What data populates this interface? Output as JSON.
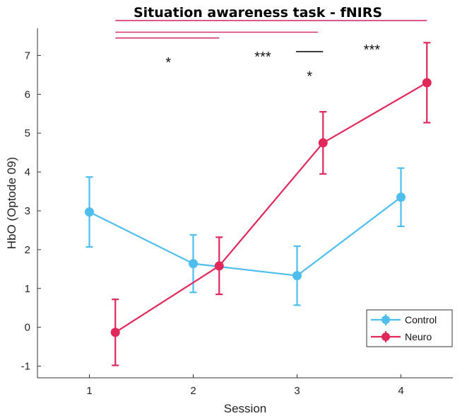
{
  "chart_data": {
    "type": "line",
    "title": "Situation awareness task - fNIRS",
    "xlabel": "Session",
    "ylabel": "HbO (Optode 09)",
    "xlim": [
      0.5,
      4.5
    ],
    "ylim": [
      -1.3,
      7.7
    ],
    "x_ticks": [
      "1",
      "2",
      "3",
      "4"
    ],
    "y_ticks": [
      "-1",
      "0",
      "1",
      "2",
      "3",
      "4",
      "5",
      "6",
      "7"
    ],
    "grid": false,
    "legend_position": "bottom-right",
    "series": [
      {
        "name": "Control",
        "color": "#4DBEEE",
        "x": [
          1,
          2,
          3,
          4
        ],
        "values": [
          2.97,
          1.64,
          1.33,
          3.35
        ],
        "err_low": [
          2.07,
          0.9,
          0.57,
          2.6
        ],
        "err_high": [
          3.87,
          2.38,
          2.09,
          4.1
        ]
      },
      {
        "name": "Neuro",
        "color": "#E0285A",
        "x": [
          1.25,
          2.25,
          3.25,
          4.25
        ],
        "values": [
          -0.13,
          1.58,
          4.75,
          6.3
        ],
        "err_low": [
          -0.98,
          0.85,
          3.95,
          5.27
        ],
        "err_high": [
          0.72,
          2.32,
          5.55,
          7.33
        ]
      }
    ],
    "significance": [
      {
        "x1": 1.25,
        "x2": 4.25,
        "level": 7.9,
        "label": "",
        "color": "#D6336C"
      },
      {
        "x1": 1.25,
        "x2": 3.2,
        "level": 7.6,
        "label": "***",
        "label_x": 2.67,
        "label_y": 7.1,
        "color": "#D6336C"
      },
      {
        "x1": 1.25,
        "x2": 2.25,
        "level": 7.45,
        "label": "*",
        "label_x": 1.76,
        "label_y": 6.95,
        "color": "#D6336C"
      },
      {
        "x1": 2.99,
        "x2": 3.25,
        "level": 7.1,
        "label": "*",
        "label_x": 3.12,
        "label_y": 6.6,
        "color": "#111111"
      },
      {
        "x1": null,
        "x2": null,
        "level": null,
        "label": "***",
        "label_x": 3.72,
        "label_y": 7.28,
        "color": "#111111"
      }
    ]
  }
}
